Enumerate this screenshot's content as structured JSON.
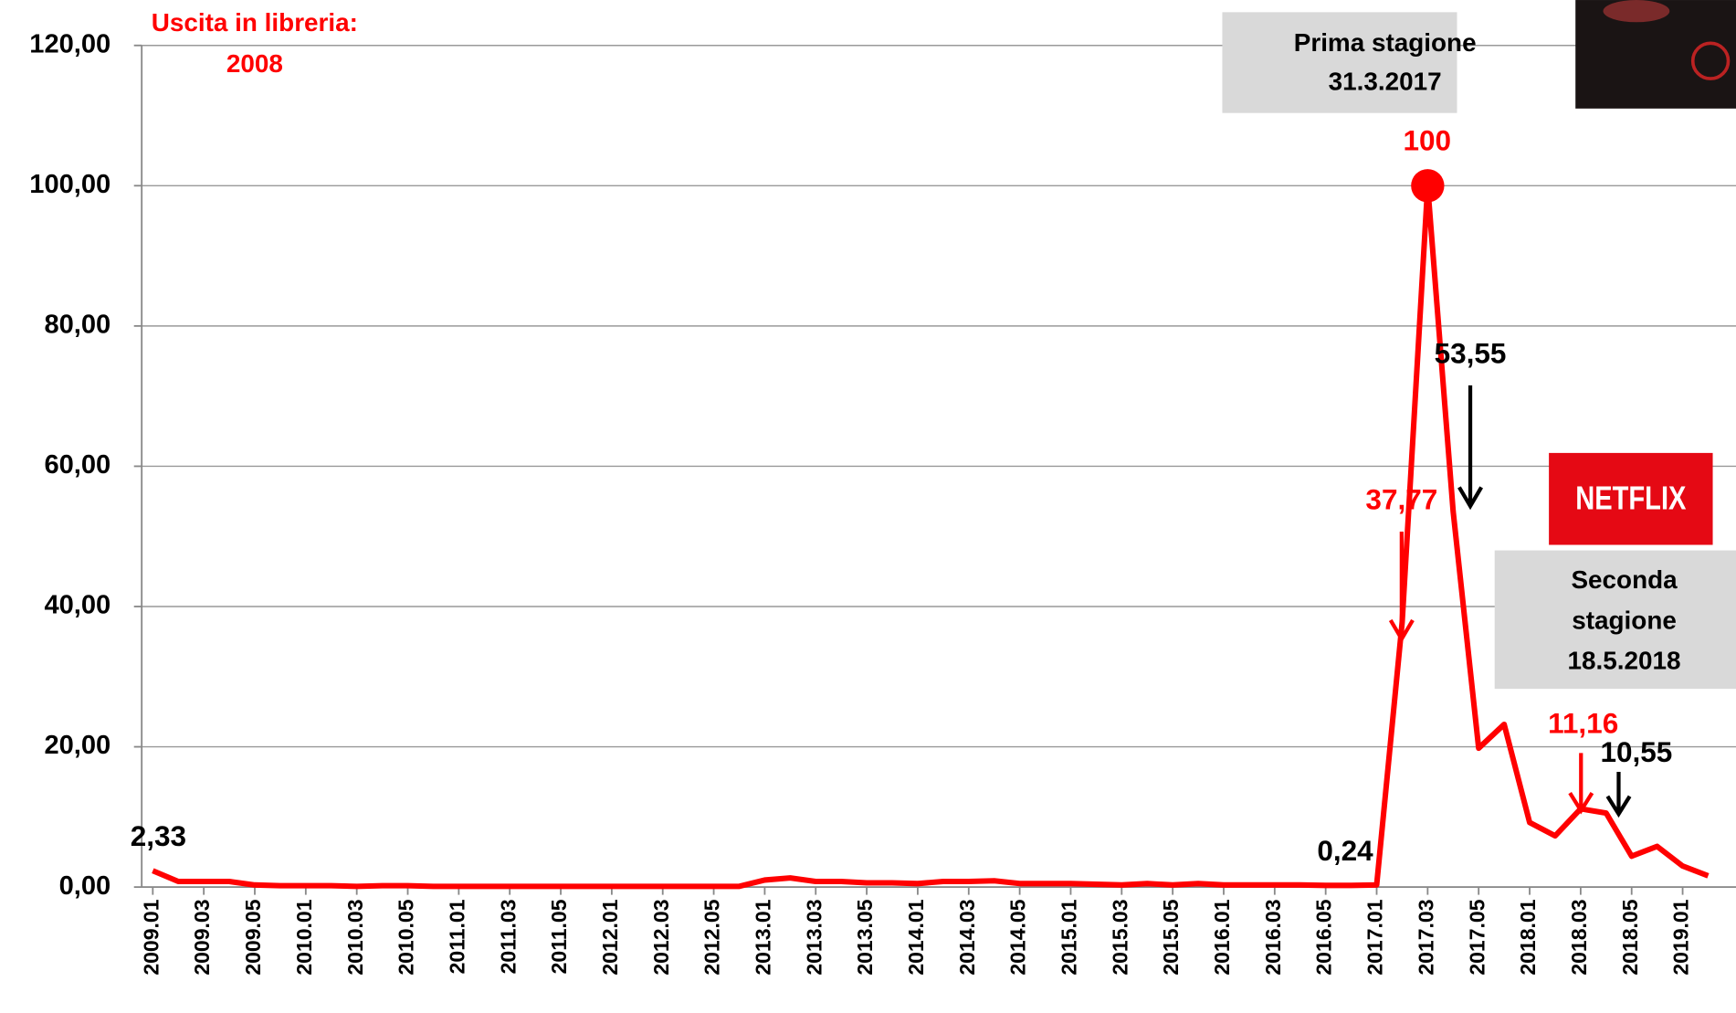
{
  "chart_data": {
    "type": "line",
    "categories": [
      "2009.01",
      null,
      "2009.03",
      null,
      "2009.05",
      null,
      "2010.01",
      null,
      "2010.03",
      null,
      "2010.05",
      null,
      "2011.01",
      null,
      "2011.03",
      null,
      "2011.05",
      null,
      "2012.01",
      null,
      "2012.03",
      null,
      "2012.05",
      null,
      "2013.01",
      null,
      "2013.03",
      null,
      "2013.05",
      null,
      "2014.01",
      null,
      "2014.03",
      null,
      "2014.05",
      null,
      "2015.01",
      null,
      "2015.03",
      null,
      "2015.05",
      null,
      "2016.01",
      null,
      "2016.03",
      null,
      "2016.05",
      null,
      "2017.01",
      null,
      "2017.03",
      null,
      "2017.05",
      null,
      "2018.01",
      null,
      "2018.03",
      null,
      "2018.05",
      null,
      "2019.01",
      null
    ],
    "series": [
      {
        "color": "#ff0000",
        "values": [
          2.33,
          0.8,
          0.8,
          0.8,
          0.3,
          0.2,
          0.2,
          0.2,
          0.1,
          0.2,
          0.2,
          0.1,
          0.1,
          0.1,
          0.1,
          0.1,
          0.1,
          0.1,
          0.1,
          0.1,
          0.1,
          0.1,
          0.1,
          0.1,
          1.0,
          1.3,
          0.8,
          0.8,
          0.6,
          0.6,
          0.5,
          0.8,
          0.8,
          0.9,
          0.5,
          0.5,
          0.5,
          0.4,
          0.3,
          0.5,
          0.3,
          0.5,
          0.3,
          0.3,
          0.3,
          0.3,
          0.24,
          0.24,
          0.3,
          37.77,
          100,
          53.55,
          19.8,
          23.2,
          9.2,
          7.3,
          11.16,
          10.55,
          4.4,
          5.8,
          3.0,
          1.6
        ],
        "value_labels": [
          "2,33",
          null,
          null,
          null,
          null,
          null,
          null,
          null,
          null,
          null,
          null,
          null,
          null,
          null,
          null,
          null,
          null,
          null,
          null,
          null,
          null,
          null,
          null,
          null,
          null,
          null,
          null,
          null,
          null,
          null,
          null,
          null,
          null,
          null,
          null,
          null,
          null,
          null,
          null,
          null,
          null,
          null,
          null,
          null,
          null,
          null,
          null,
          "0,24",
          null,
          "37,77",
          "100",
          "53,55",
          null,
          null,
          null,
          null,
          "11,16",
          "10,55",
          null,
          null,
          null,
          null
        ]
      }
    ],
    "ylim": [
      0,
      120
    ],
    "yticks": [
      {
        "value": 0,
        "label": "0,00"
      },
      {
        "value": 20,
        "label": "20,00"
      },
      {
        "value": 40,
        "label": "40,00"
      },
      {
        "value": 60,
        "label": "60,00"
      },
      {
        "value": 80,
        "label": "80,00"
      },
      {
        "value": 100,
        "label": "100,00"
      },
      {
        "value": 120,
        "label": "120,00"
      }
    ],
    "grid": true,
    "annotations": [
      "Uscita in libreria:",
      "2008",
      "Prima stagione",
      "31.3.2017",
      "NETFLIX",
      "Seconda",
      "stagione",
      "18.5.2018"
    ]
  }
}
